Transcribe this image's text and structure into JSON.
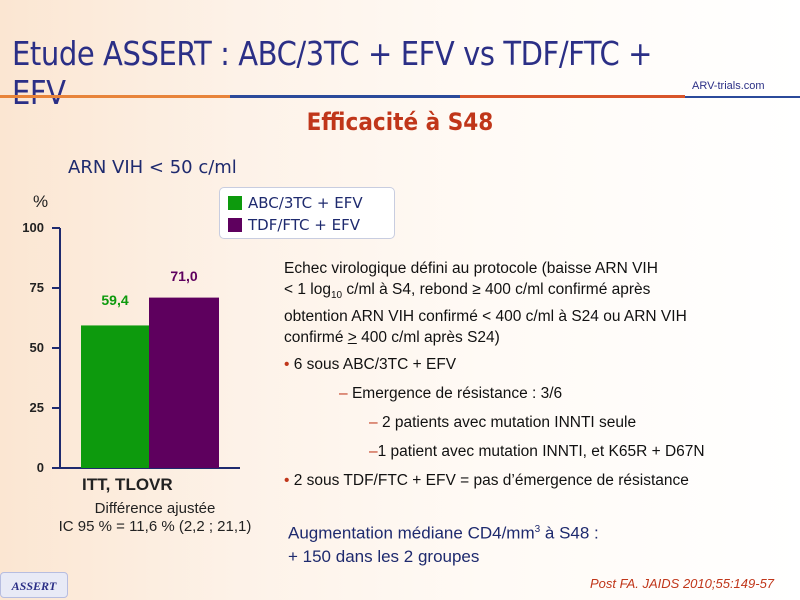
{
  "header": {
    "title": "Etude ASSERT : ABC/3TC + EFV vs TDF/FTC + EFV",
    "logo_text": "ARV-trials.com",
    "subtitle": "Efficacité à S48"
  },
  "chart_data": {
    "type": "bar",
    "title": "ARN VIH < 50 c/ml",
    "ylabel": "%",
    "ylim": [
      0,
      100
    ],
    "yticks": [
      0,
      25,
      50,
      75,
      100
    ],
    "categories": [
      "ITT, TLOVR"
    ],
    "series": [
      {
        "name": "ABC/3TC + EFV",
        "values": [
          59.4
        ],
        "label": "59,4",
        "color": "#0d9a0d"
      },
      {
        "name": "TDF/FTC + EFV",
        "values": [
          71.0
        ],
        "label": "71,0",
        "color": "#5e005e"
      }
    ],
    "legend": "top-right",
    "annotation": [
      "Différence ajustée",
      "IC 95 % = 11,6 % (2,2 ; 21,1)"
    ]
  },
  "text": {
    "intro_1": "Echec virologique défini au protocole (baisse ARN VIH",
    "intro_2a": "< 1 log",
    "intro_2sub": "10",
    "intro_2b": " c/ml à S4, rebond ≥ 400 c/ml confirmé après",
    "intro_3": "obtention ARN VIH confirmé < 400 c/ml à S24 ou ARN VIH",
    "intro_4a": "confirmé ",
    "intro_4u": ">",
    "intro_4b": " 400 c/ml après S24)",
    "bullet1": "6 sous ABC/3TC + EFV",
    "sub1": "Emergence de résistance : 3/6",
    "sub2": "2 patients avec mutation INNTI seule",
    "sub3": "1 patient avec mutation INNTI, et K65R + D67N",
    "bullet2": "2 sous TDF/FTC + EFV = pas d’émergence de résistance",
    "cd4_a": "Augmentation médiane CD4/mm",
    "cd4_sup": "3",
    "cd4_b": " à S48 :",
    "cd4_2": "+ 150 dans les 2 groupes"
  },
  "footer": {
    "badge": "ASSERT",
    "reference": "Post FA. JAIDS 2010;55:149-57"
  }
}
